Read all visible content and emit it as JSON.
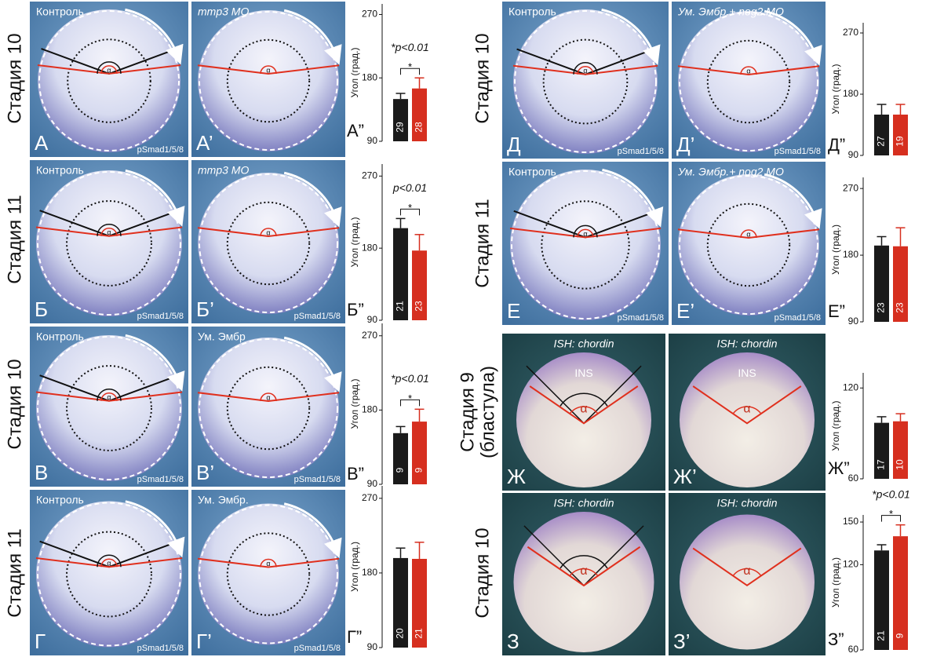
{
  "stages": [
    [
      "Стадия 10"
    ],
    [
      "Стадия 11"
    ],
    [
      "Стадия 10"
    ],
    [
      "Стадия 11"
    ],
    [
      "Стадия 10"
    ],
    [
      "Стадия 11"
    ],
    [
      "Стадия 9",
      "(бластула)"
    ],
    [
      "Стадия 10"
    ]
  ],
  "panels": [
    {
      "label": "А",
      "title": "Контроль",
      "marker": "pSmad1/5/8",
      "alpha": "α"
    },
    {
      "label": "А’",
      "title": "mmp3 MO",
      "alpha": "α"
    },
    {
      "label": "Б",
      "title": "Контроль",
      "marker": "pSmad1/5/8",
      "alpha": "α"
    },
    {
      "label": "Б’",
      "title": "mmp3 MO",
      "marker": "pSmad1/5/8",
      "alpha": "α"
    },
    {
      "label": "В",
      "title": "Контроль",
      "marker": "pSmad1/5/8",
      "alpha": "α"
    },
    {
      "label": "В’",
      "title": "Ум. Эмбр",
      "marker": "pSmad1/5/8",
      "alpha": "α"
    },
    {
      "label": "Г",
      "title": "Контроль",
      "marker": "pSmad1/5/8",
      "alpha": "α"
    },
    {
      "label": "Г’",
      "title": "Ум. Эмбр.",
      "marker": "pSmad1/5/8",
      "alpha": "α"
    },
    {
      "label": "Д",
      "title": "Контроль",
      "marker": "pSmad1/5/8",
      "alpha": "α"
    },
    {
      "label": "Д’",
      "title": "Ум. Эмбр.+ nog2 MO",
      "marker": "pSmad1/5/8",
      "alpha": "α"
    },
    {
      "label": "Е",
      "title": "Контроль",
      "marker": "pSmad1/5/8",
      "alpha": "α"
    },
    {
      "label": "Е’",
      "title": "Ум. Эмбр.+ nog2 MO",
      "marker": "pSmad1/5/8",
      "alpha": "α"
    },
    {
      "label": "Ж",
      "title": "ISH: chordin",
      "ins": "INS",
      "alpha": "α"
    },
    {
      "label": "Ж’",
      "title": "ISH: chordin",
      "ins": "INS",
      "alpha": "α"
    },
    {
      "label": "З",
      "title": "ISH: chordin",
      "alpha": "α"
    },
    {
      "label": "З’",
      "title": "ISH: chordin",
      "alpha": "α"
    }
  ],
  "chart_data": [
    {
      "type": "bar",
      "label": "А”",
      "y_label": "Угол (град.)",
      "ylim": [
        90,
        285
      ],
      "yticks": [
        90,
        180,
        270
      ],
      "values": [
        150,
        165
      ],
      "errors": [
        8,
        15
      ],
      "colors": [
        "#1a1a1a",
        "#d62f1f"
      ],
      "bar_labels": [
        "29",
        "28"
      ],
      "annotation": "*p<0.01",
      "bracket_label": "*"
    },
    {
      "type": "bar",
      "label": "Б”",
      "y_label": "Угол (град.)",
      "ylim": [
        90,
        285
      ],
      "yticks": [
        90,
        180,
        270
      ],
      "values": [
        205,
        177
      ],
      "errors": [
        12,
        20
      ],
      "colors": [
        "#1a1a1a",
        "#d62f1f"
      ],
      "bar_labels": [
        "21",
        "23"
      ],
      "annotation": "p<0.01",
      "bracket_label": "*"
    },
    {
      "type": "bar",
      "label": "В”",
      "y_label": "Угол (град.)",
      "ylim": [
        90,
        285
      ],
      "yticks": [
        90,
        180,
        270
      ],
      "values": [
        152,
        166
      ],
      "errors": [
        8,
        15
      ],
      "colors": [
        "#1a1a1a",
        "#d62f1f"
      ],
      "bar_labels": [
        "9",
        "9"
      ],
      "annotation": "*p<0.01",
      "bracket_label": "*"
    },
    {
      "type": "bar",
      "label": "Г”",
      "y_label": "Угол (град.)",
      "ylim": [
        90,
        285
      ],
      "yticks": [
        90,
        180,
        270
      ],
      "values": [
        198,
        197
      ],
      "errors": [
        12,
        20
      ],
      "colors": [
        "#1a1a1a",
        "#d62f1f"
      ],
      "bar_labels": [
        "20",
        "21"
      ]
    },
    {
      "type": "bar",
      "label": "Д”",
      "y_label": "Угол (град.)",
      "ylim": [
        90,
        285
      ],
      "yticks": [
        90,
        180,
        270
      ],
      "values": [
        150,
        150
      ],
      "errors": [
        15,
        15
      ],
      "colors": [
        "#1a1a1a",
        "#d62f1f"
      ],
      "bar_labels": [
        "27",
        "19"
      ]
    },
    {
      "type": "bar",
      "label": "Е”",
      "y_label": "Угол (град.)",
      "ylim": [
        90,
        285
      ],
      "yticks": [
        90,
        180,
        270
      ],
      "values": [
        193,
        192
      ],
      "errors": [
        12,
        25
      ],
      "colors": [
        "#1a1a1a",
        "#d62f1f"
      ],
      "bar_labels": [
        "23",
        "23"
      ]
    },
    {
      "type": "bar",
      "label": "Ж”",
      "y_label": "Угол (град.)",
      "ylim": [
        60,
        130
      ],
      "yticks": [
        60,
        120
      ],
      "values": [
        97,
        98
      ],
      "errors": [
        4,
        5
      ],
      "colors": [
        "#1a1a1a",
        "#d62f1f"
      ],
      "bar_labels": [
        "17",
        "10"
      ]
    },
    {
      "type": "bar",
      "label": "З”",
      "y_label": "Угол (град.)",
      "ylim": [
        60,
        155
      ],
      "yticks": [
        60,
        120,
        150
      ],
      "values": [
        130,
        140
      ],
      "errors": [
        4,
        8
      ],
      "colors": [
        "#1a1a1a",
        "#d62f1f"
      ],
      "bar_labels": [
        "21",
        "9"
      ],
      "annotation": "*p<0.01",
      "bracket_label": "*"
    }
  ]
}
